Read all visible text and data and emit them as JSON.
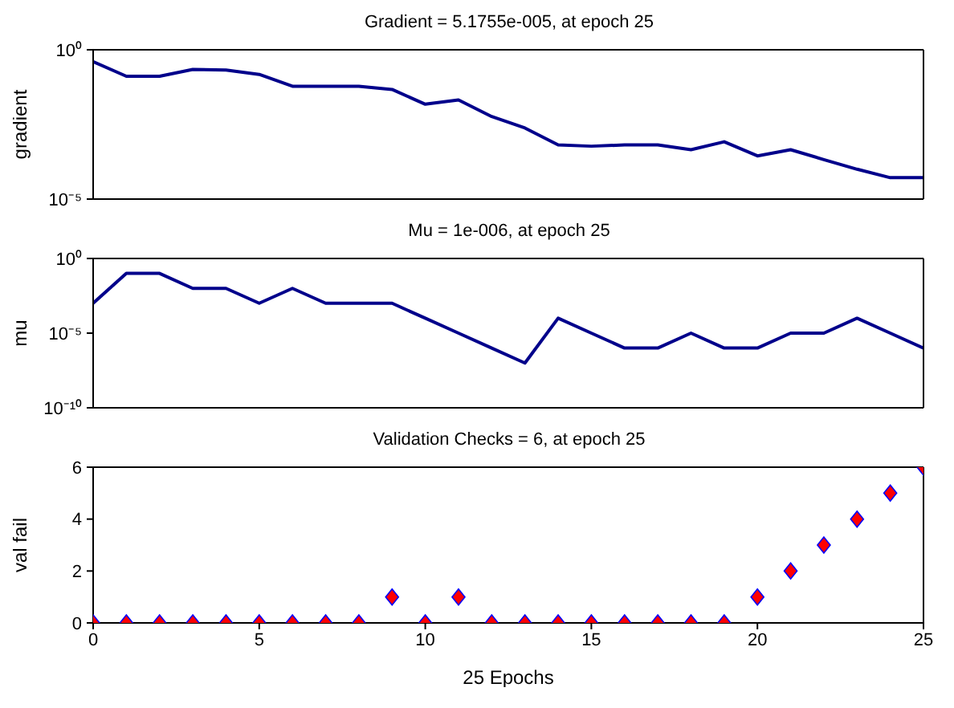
{
  "chart_data": [
    {
      "type": "line",
      "title": "Gradient = 5.1755e-005, at epoch 25",
      "ylabel": "gradient",
      "log": "y",
      "marker": "none",
      "line_style": "solid",
      "color": "#00008b",
      "tick_labels": "y",
      "x": [
        0,
        1,
        2,
        3,
        4,
        5,
        6,
        7,
        8,
        9,
        10,
        11,
        12,
        13,
        14,
        15,
        16,
        17,
        18,
        19,
        20,
        21,
        22,
        23,
        24,
        25
      ],
      "values": [
        0.4,
        0.13,
        0.13,
        0.22,
        0.21,
        0.15,
        0.06,
        0.06,
        0.06,
        0.047,
        0.015,
        0.021,
        0.0058,
        0.0024,
        0.00065,
        0.00059,
        0.00065,
        0.00065,
        0.00045,
        0.00083,
        0.00028,
        0.00045,
        0.00021,
        0.0001,
        5.2e-05,
        5.2e-05
      ],
      "xlim": [
        0,
        25
      ],
      "xticks": [
        0,
        5,
        10,
        15,
        20,
        25
      ],
      "ylim": [
        1e-05,
        1
      ],
      "yticks": [
        {
          "value": 1e-05,
          "label": "10⁻⁵"
        },
        {
          "value": 1,
          "label": "10⁰"
        }
      ]
    },
    {
      "type": "line",
      "title": "Mu = 1e-006, at epoch 25",
      "ylabel": "mu",
      "log": "y",
      "marker": "none",
      "line_style": "solid",
      "color": "#00008b",
      "tick_labels": "y",
      "x": [
        0,
        1,
        2,
        3,
        4,
        5,
        6,
        7,
        8,
        9,
        10,
        11,
        12,
        13,
        14,
        15,
        16,
        17,
        18,
        19,
        20,
        21,
        22,
        23,
        24,
        25
      ],
      "values": [
        0.001,
        0.1,
        0.1,
        0.01,
        0.01,
        0.001,
        0.01,
        0.001,
        0.001,
        0.001,
        0.0001,
        1e-05,
        1e-06,
        1e-07,
        0.0001,
        1e-05,
        1e-06,
        1e-06,
        1e-05,
        1e-06,
        1e-06,
        1e-05,
        1e-05,
        0.0001,
        1e-05,
        1e-06
      ],
      "xlim": [
        0,
        25
      ],
      "xticks": [
        0,
        5,
        10,
        15,
        20,
        25
      ],
      "ylim": [
        1e-10,
        1
      ],
      "yticks": [
        {
          "value": 1e-10,
          "label": "10⁻¹⁰"
        },
        {
          "value": 1e-05,
          "label": "10⁻⁵"
        },
        {
          "value": 1,
          "label": "10⁰"
        }
      ]
    },
    {
      "type": "scatter",
      "title": "Validation Checks = 6, at epoch 25",
      "ylabel": "val fail",
      "xlabel": "25 Epochs",
      "marker": "diamond",
      "color": "#ff0000",
      "x": [
        0,
        1,
        2,
        3,
        4,
        5,
        6,
        7,
        8,
        9,
        10,
        11,
        12,
        13,
        14,
        15,
        16,
        17,
        18,
        19,
        20,
        21,
        22,
        23,
        24,
        25
      ],
      "values": [
        0,
        0,
        0,
        0,
        0,
        0,
        0,
        0,
        0,
        1,
        0,
        1,
        0,
        0,
        0,
        0,
        0,
        0,
        0,
        0,
        1,
        2,
        3,
        4,
        5,
        6
      ],
      "xlim": [
        0,
        25
      ],
      "xticks": [
        0,
        5,
        10,
        15,
        20,
        25
      ],
      "ylim": [
        0,
        6
      ],
      "yticks": [
        0,
        2,
        4,
        6
      ]
    }
  ]
}
